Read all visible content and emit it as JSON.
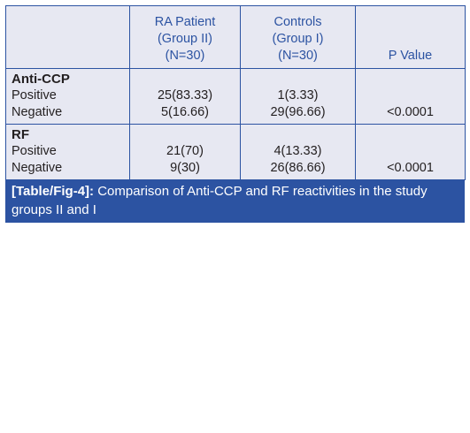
{
  "table": {
    "headers": [
      {
        "lines": [
          "",
          "",
          ""
        ]
      },
      {
        "lines": [
          "RA Patient",
          "(Group II)",
          "(N=30)"
        ]
      },
      {
        "lines": [
          "Controls",
          "(Group I)",
          "(N=30)"
        ]
      },
      {
        "lines": [
          "",
          "",
          "P Value"
        ]
      }
    ],
    "groups": [
      {
        "name": "Anti-CCP",
        "rows": [
          {
            "label": "Positive",
            "ra": "25(83.33)",
            "controls": "1(3.33)",
            "p": ""
          },
          {
            "label": "Negative",
            "ra": "5(16.66)",
            "controls": "29(96.66)",
            "p": "<0.0001"
          }
        ]
      },
      {
        "name": "RF",
        "rows": [
          {
            "label": "Positive",
            "ra": "21(70)",
            "controls": "4(13.33)",
            "p": ""
          },
          {
            "label": "Negative",
            "ra": "9(30)",
            "controls": "26(86.66)",
            "p": "<0.0001"
          }
        ]
      }
    ]
  },
  "caption": {
    "tag": "[Table/Fig-4]:",
    "text": " Comparison of Anti-CCP and RF reactivities in the study groups II and I"
  },
  "colors": {
    "accent": "#2c53a2",
    "table_bg": "#e7e8f2",
    "text": "#231f20"
  }
}
